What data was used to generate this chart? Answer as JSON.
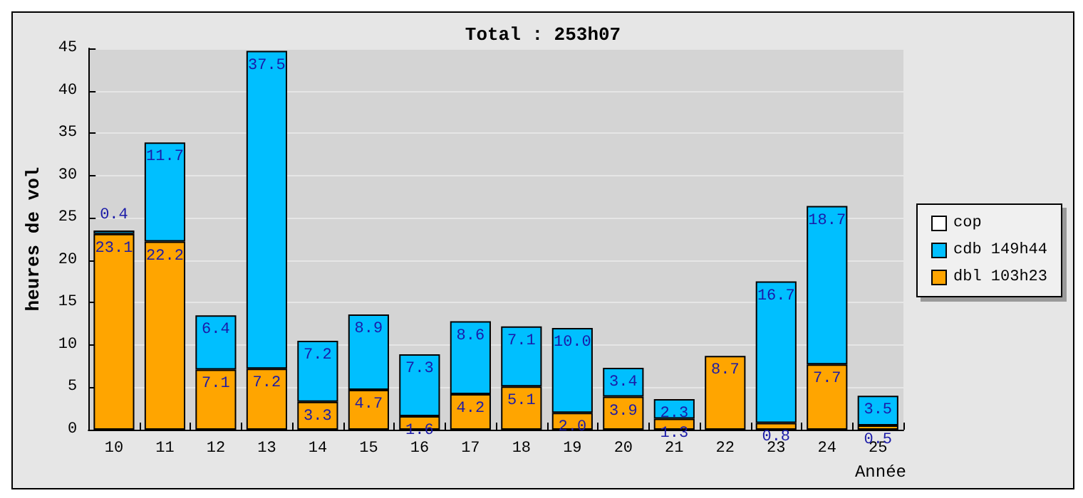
{
  "chart_data": {
    "type": "bar",
    "title": "Total : 253h07",
    "xlabel": "Année",
    "ylabel": "heures de vol",
    "categories": [
      "10",
      "11",
      "12",
      "13",
      "14",
      "15",
      "16",
      "17",
      "18",
      "19",
      "20",
      "21",
      "22",
      "23",
      "24",
      "25"
    ],
    "stacked": true,
    "series": [
      {
        "name": "dbl 103h23",
        "color": "#ffa500",
        "values": [
          23.1,
          22.2,
          7.1,
          7.2,
          3.3,
          4.7,
          1.6,
          4.2,
          5.1,
          2.0,
          3.9,
          1.3,
          8.7,
          0.8,
          7.7,
          0.5
        ],
        "value_labels": [
          "23.1",
          "22.2",
          "7.1",
          "7.2",
          "3.3",
          "4.7",
          "1.6",
          "4.2",
          "5.1",
          "2.0",
          "3.9",
          "1.3",
          "8.7",
          "0.8",
          "7.7",
          "0.5"
        ]
      },
      {
        "name": "cdb 149h44",
        "color": "#00bfff",
        "values": [
          0.4,
          11.7,
          6.4,
          37.5,
          7.2,
          8.9,
          7.3,
          8.6,
          7.1,
          10.0,
          3.4,
          2.3,
          null,
          16.7,
          18.7,
          3.5
        ],
        "value_labels": [
          "0.4",
          "11.7",
          "6.4",
          "37.5",
          "7.2",
          "8.9",
          "7.3",
          "8.6",
          "7.1",
          "10.0",
          "3.4",
          "2.3",
          null,
          "16.7",
          "18.7",
          "3.5"
        ]
      },
      {
        "name": "cop",
        "color": "#ffffff",
        "values": [
          null,
          null,
          null,
          null,
          null,
          null,
          null,
          null,
          null,
          null,
          null,
          null,
          null,
          null,
          null,
          null
        ]
      }
    ],
    "ylim": [
      0,
      45
    ],
    "yticks": [
      0,
      5,
      10,
      15,
      20,
      25,
      30,
      35,
      40,
      45
    ],
    "grid": "y",
    "legend": "right"
  }
}
